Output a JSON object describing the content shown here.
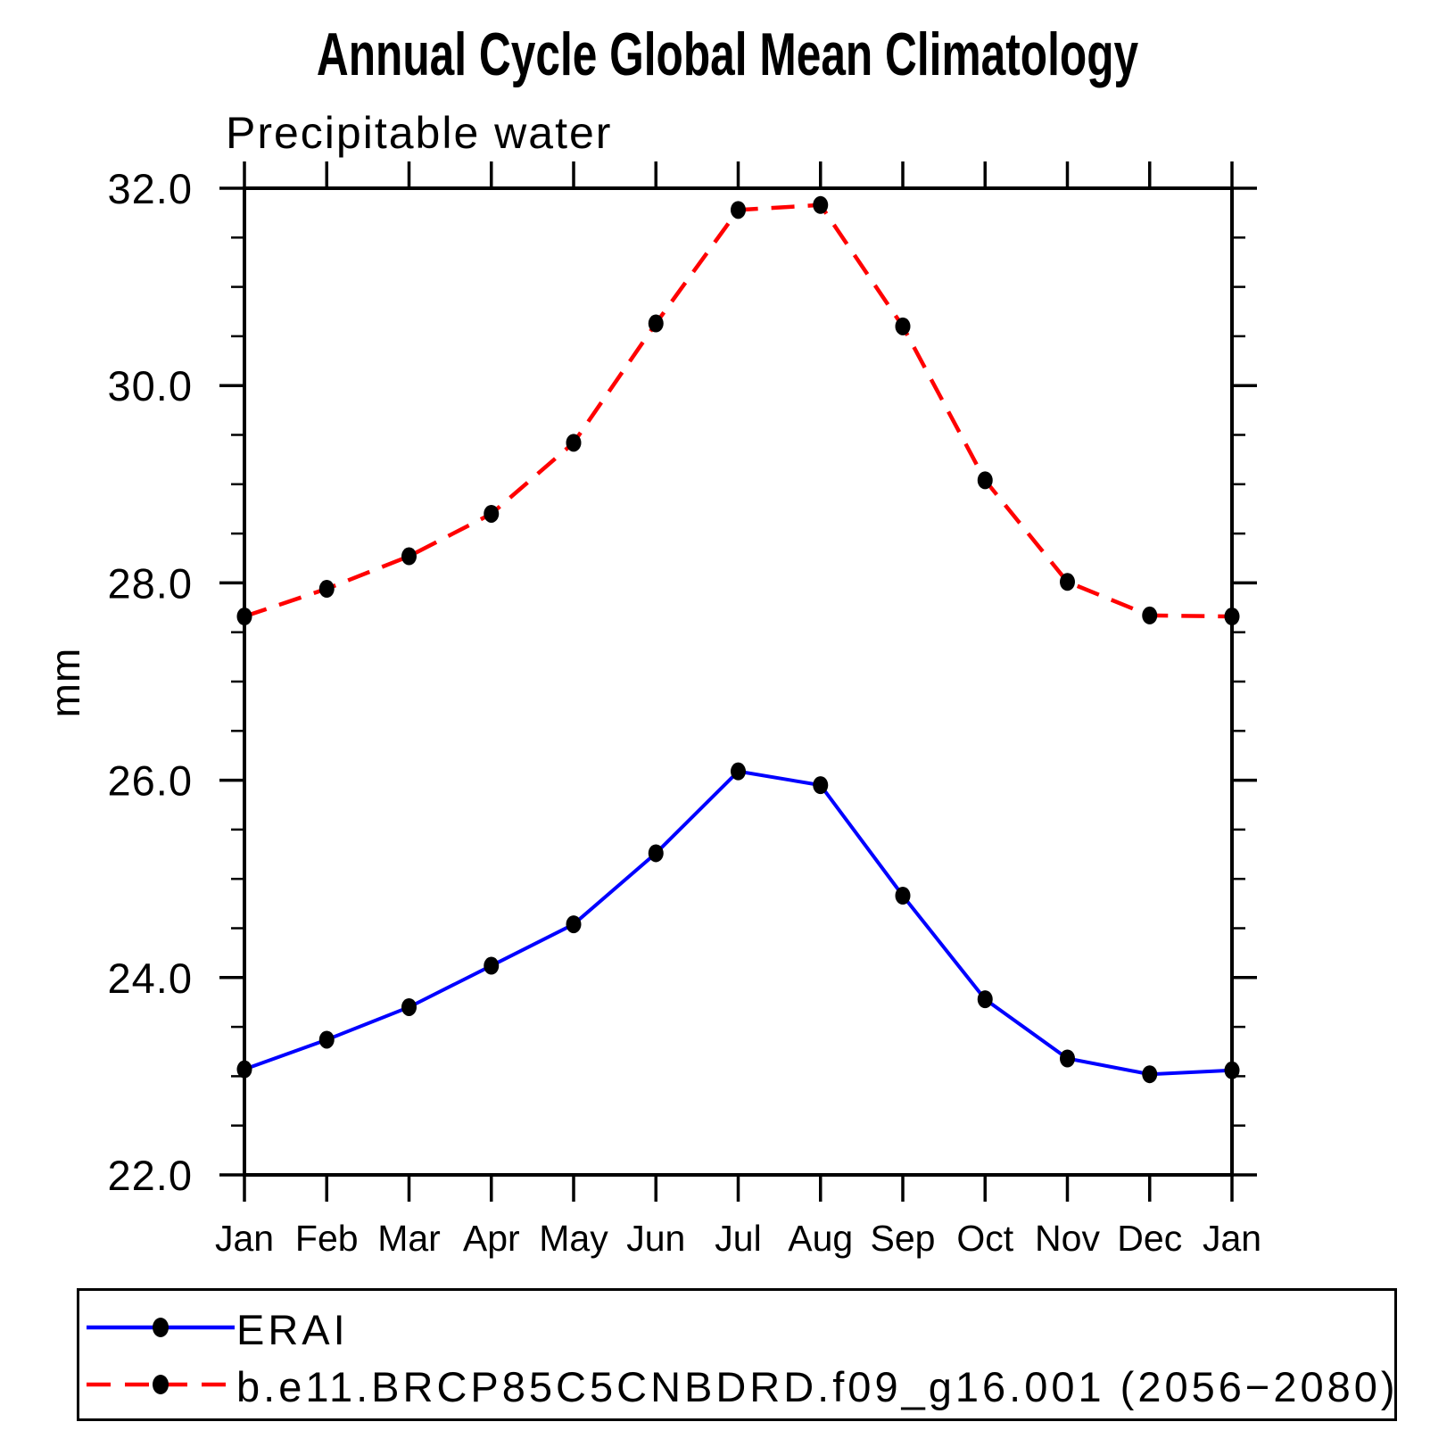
{
  "header": {
    "title": "Annual Cycle Global Mean Climatology",
    "subtitle": "Precipitable water"
  },
  "chart_data": {
    "type": "line",
    "title": "Annual Cycle Global Mean Climatology",
    "subtitle": "Precipitable water",
    "xlabel": "",
    "ylabel": "mm",
    "x_tick_labels": [
      "Jan",
      "Feb",
      "Mar",
      "Apr",
      "May",
      "Jun",
      "Jul",
      "Aug",
      "Sep",
      "Oct",
      "Nov",
      "Dec",
      "Jan"
    ],
    "ylim": [
      22.0,
      32.0
    ],
    "y_major_ticks": [
      22.0,
      24.0,
      26.0,
      28.0,
      30.0,
      32.0
    ],
    "y_minor_step": 0.5,
    "grid": false,
    "legend_position": "bottom-left-box",
    "axis_color": "#000000",
    "marker_color": "#000000",
    "series": [
      {
        "name": "ERAI",
        "color": "#0000ff",
        "style": "solid",
        "marker": "filled-circle",
        "values": [
          23.07,
          23.37,
          23.7,
          24.12,
          24.54,
          25.26,
          26.09,
          25.95,
          24.83,
          23.78,
          23.18,
          23.02,
          23.06
        ]
      },
      {
        "name": "b.e11.BRCP85C5CNBDRD.f09_g16.001 (2056−2080)",
        "color": "#ff0000",
        "style": "dashed",
        "marker": "filled-circle",
        "values": [
          27.66,
          27.94,
          28.27,
          28.7,
          29.42,
          30.63,
          31.78,
          31.83,
          30.6,
          29.04,
          28.01,
          27.67,
          27.66
        ]
      }
    ]
  }
}
